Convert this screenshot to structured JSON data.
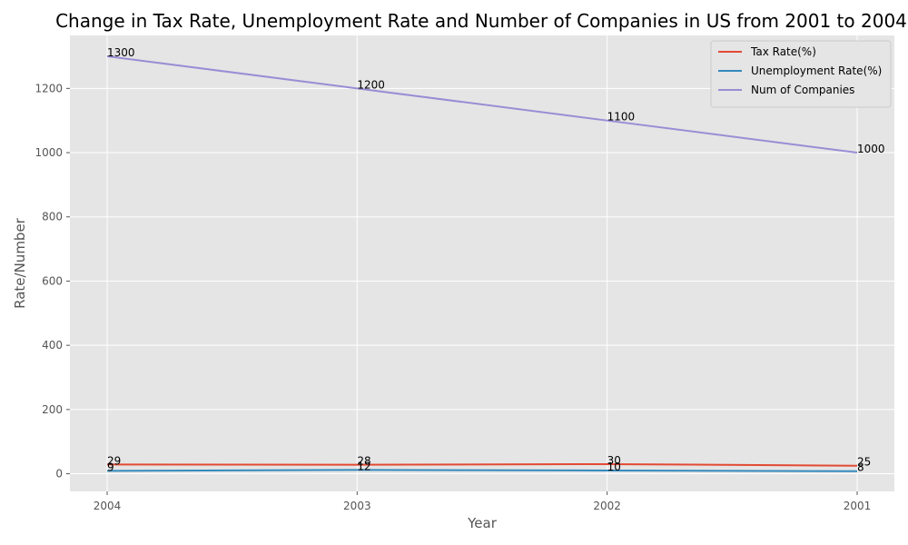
{
  "chart_data": {
    "type": "line",
    "title": "Change in Tax Rate, Unemployment Rate and Number of Companies in US from 2001 to 2004",
    "xlabel": "Year",
    "ylabel": "Rate/Number",
    "categories": [
      "2004",
      "2003",
      "2002",
      "2001"
    ],
    "ylim": [
      -55,
      1365
    ],
    "yticks": [
      0,
      200,
      400,
      600,
      800,
      1000,
      1200
    ],
    "grid": true,
    "legend_position": "top-right",
    "series": [
      {
        "name": "Tax Rate(%)",
        "color": "#E24A33",
        "values": [
          29,
          28,
          30,
          25
        ]
      },
      {
        "name": "Unemployment Rate(%)",
        "color": "#348ABD",
        "values": [
          9,
          12,
          10,
          8
        ]
      },
      {
        "name": "Num of Companies",
        "color": "#988ED5",
        "values": [
          1300,
          1200,
          1100,
          1000
        ]
      }
    ]
  }
}
